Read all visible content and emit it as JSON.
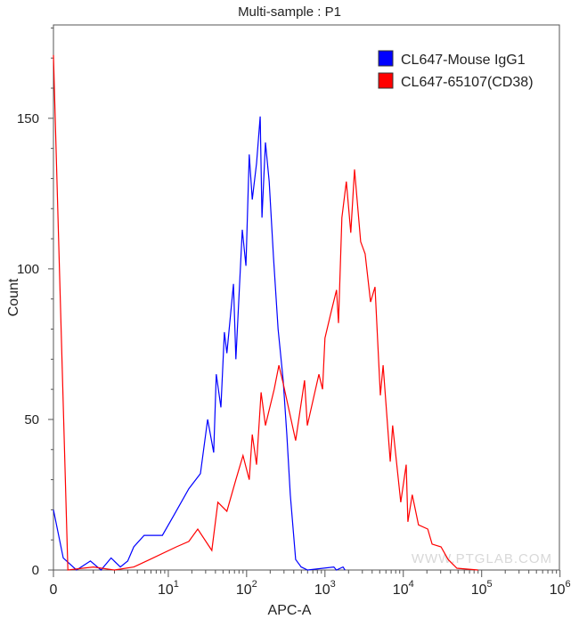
{
  "chart_data": {
    "type": "line",
    "title": "Multi-sample : P1",
    "xlabel": "APC-A",
    "ylabel": "Count",
    "x_scale": "biexponential",
    "xlim": [
      0,
      1000000
    ],
    "ylim": [
      0,
      181
    ],
    "x_ticks": [
      {
        "value": 0,
        "base": "0",
        "exp": ""
      },
      {
        "value": 10,
        "base": "10",
        "exp": "1"
      },
      {
        "value": 100,
        "base": "10",
        "exp": "2"
      },
      {
        "value": 1000,
        "base": "10",
        "exp": "3"
      },
      {
        "value": 10000,
        "base": "10",
        "exp": "4"
      },
      {
        "value": 100000,
        "base": "10",
        "exp": "5"
      },
      {
        "value": 1000000,
        "base": "10",
        "exp": "6"
      }
    ],
    "y_ticks": [
      "0",
      "50",
      "100",
      "150"
    ],
    "grid": false,
    "legend_position": "top-right",
    "watermark": "WWW.PTGLAB.COM",
    "series": [
      {
        "name": "CL647-Mouse IgG1",
        "color": "#0000ff",
        "points": [
          [
            0,
            20
          ],
          [
            0.2,
            4
          ],
          [
            0.5,
            0
          ],
          [
            0.9,
            3
          ],
          [
            1.3,
            0
          ],
          [
            1.8,
            4
          ],
          [
            2.4,
            1
          ],
          [
            3,
            3
          ],
          [
            3.6,
            7.7
          ],
          [
            4.9,
            11.5
          ],
          [
            8.4,
            11.5
          ],
          [
            11.7,
            18
          ],
          [
            18.3,
            27
          ],
          [
            25.7,
            32
          ],
          [
            31.8,
            50
          ],
          [
            38,
            39
          ],
          [
            41,
            65
          ],
          [
            47,
            54
          ],
          [
            52,
            79
          ],
          [
            56,
            72
          ],
          [
            68,
            95
          ],
          [
            73,
            70
          ],
          [
            88,
            113
          ],
          [
            98,
            101
          ],
          [
            108,
            138
          ],
          [
            118,
            123
          ],
          [
            134,
            135
          ],
          [
            149,
            150.6
          ],
          [
            157,
            117
          ],
          [
            174,
            142
          ],
          [
            194,
            129
          ],
          [
            220,
            104
          ],
          [
            252,
            80
          ],
          [
            293,
            63
          ],
          [
            326,
            45
          ],
          [
            361,
            25
          ],
          [
            423,
            3.5
          ],
          [
            497,
            1
          ],
          [
            600,
            0
          ],
          [
            1300,
            1
          ],
          [
            1400,
            0
          ],
          [
            1700,
            1
          ],
          [
            1800,
            0
          ]
        ]
      },
      {
        "name": "CL647-65107(CD38)",
        "color": "#ff0000",
        "points": [
          [
            0,
            171
          ],
          [
            0.3,
            0
          ],
          [
            1,
            1
          ],
          [
            2,
            0
          ],
          [
            3.6,
            1
          ],
          [
            5.8,
            3.5
          ],
          [
            12.7,
            7.7
          ],
          [
            18.3,
            9.5
          ],
          [
            23.8,
            13.6
          ],
          [
            36,
            6.5
          ],
          [
            43,
            22.5
          ],
          [
            56,
            19.5
          ],
          [
            73,
            30
          ],
          [
            90,
            38
          ],
          [
            108,
            30
          ],
          [
            118,
            45
          ],
          [
            134,
            35
          ],
          [
            153,
            59
          ],
          [
            174,
            48
          ],
          [
            198,
            54
          ],
          [
            225,
            60
          ],
          [
            258,
            68
          ],
          [
            293,
            62
          ],
          [
            423,
            43
          ],
          [
            549,
            63
          ],
          [
            595,
            48
          ],
          [
            836,
            65
          ],
          [
            931,
            60
          ],
          [
            1000,
            77
          ],
          [
            1206,
            86
          ],
          [
            1404,
            93
          ],
          [
            1490,
            82
          ],
          [
            1645,
            117
          ],
          [
            1874,
            129
          ],
          [
            2134,
            112
          ],
          [
            2384,
            133
          ],
          [
            2857,
            109
          ],
          [
            3260,
            105
          ],
          [
            3822,
            89
          ],
          [
            4350,
            94
          ],
          [
            5096,
            58
          ],
          [
            5520,
            68
          ],
          [
            6815,
            36
          ],
          [
            7316,
            48
          ],
          [
            9282,
            22.5
          ],
          [
            10890,
            35
          ],
          [
            11440,
            16
          ],
          [
            13000,
            25
          ],
          [
            15600,
            15
          ],
          [
            20500,
            13.6
          ],
          [
            23300,
            8.6
          ],
          [
            30300,
            7.7
          ],
          [
            37300,
            3.5
          ],
          [
            48300,
            0.6
          ],
          [
            90000,
            0
          ]
        ]
      }
    ]
  }
}
